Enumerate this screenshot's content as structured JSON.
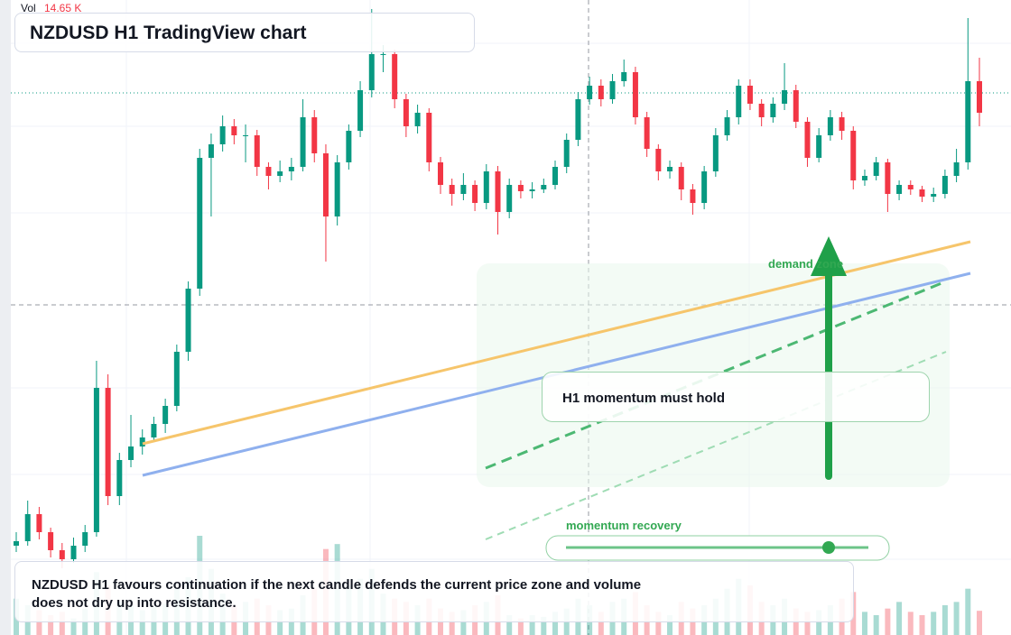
{
  "chart_data": {
    "type": "candlestick",
    "title": "NZDUSD H1 TradingView chart",
    "up_color": "#089981",
    "down_color": "#f23645",
    "candles": [
      [
        95,
        110,
        88,
        100
      ],
      [
        100,
        145,
        95,
        130
      ],
      [
        130,
        138,
        102,
        110
      ],
      [
        110,
        115,
        82,
        90
      ],
      [
        90,
        98,
        70,
        80
      ],
      [
        80,
        104,
        76,
        95
      ],
      [
        95,
        118,
        88,
        110
      ],
      [
        110,
        300,
        105,
        270
      ],
      [
        270,
        285,
        140,
        150
      ],
      [
        150,
        198,
        140,
        190
      ],
      [
        190,
        240,
        182,
        205
      ],
      [
        205,
        224,
        196,
        215
      ],
      [
        215,
        238,
        210,
        230
      ],
      [
        230,
        258,
        220,
        250
      ],
      [
        250,
        318,
        244,
        310
      ],
      [
        310,
        388,
        300,
        380
      ],
      [
        380,
        535,
        372,
        525
      ],
      [
        525,
        552,
        460,
        540
      ],
      [
        540,
        572,
        532,
        560
      ],
      [
        560,
        568,
        540,
        550
      ],
      [
        550,
        562,
        520,
        550
      ],
      [
        550,
        556,
        505,
        515
      ],
      [
        515,
        520,
        490,
        505
      ],
      [
        505,
        522,
        498,
        510
      ],
      [
        510,
        525,
        500,
        515
      ],
      [
        515,
        590,
        510,
        570
      ],
      [
        570,
        578,
        520,
        530
      ],
      [
        530,
        540,
        410,
        460
      ],
      [
        460,
        528,
        450,
        520
      ],
      [
        520,
        562,
        512,
        555
      ],
      [
        555,
        610,
        548,
        600
      ],
      [
        600,
        690,
        592,
        640
      ],
      [
        640,
        650,
        620,
        640
      ],
      [
        640,
        645,
        580,
        590
      ],
      [
        590,
        596,
        548,
        560
      ],
      [
        560,
        584,
        552,
        575
      ],
      [
        575,
        580,
        510,
        520
      ],
      [
        520,
        526,
        485,
        495
      ],
      [
        495,
        502,
        472,
        485
      ],
      [
        485,
        508,
        478,
        495
      ],
      [
        495,
        500,
        466,
        475
      ],
      [
        475,
        518,
        468,
        510
      ],
      [
        510,
        516,
        440,
        465
      ],
      [
        465,
        502,
        458,
        495
      ],
      [
        495,
        500,
        480,
        488
      ],
      [
        488,
        498,
        480,
        490
      ],
      [
        490,
        502,
        486,
        495
      ],
      [
        495,
        522,
        490,
        515
      ],
      [
        515,
        552,
        508,
        545
      ],
      [
        545,
        598,
        538,
        590
      ],
      [
        590,
        615,
        584,
        605
      ],
      [
        605,
        612,
        582,
        590
      ],
      [
        590,
        618,
        585,
        610
      ],
      [
        610,
        634,
        604,
        620
      ],
      [
        620,
        626,
        562,
        570
      ],
      [
        570,
        576,
        526,
        535
      ],
      [
        535,
        540,
        500,
        510
      ],
      [
        510,
        522,
        502,
        515
      ],
      [
        515,
        520,
        478,
        490
      ],
      [
        490,
        496,
        462,
        475
      ],
      [
        475,
        516,
        468,
        510
      ],
      [
        510,
        558,
        504,
        550
      ],
      [
        550,
        578,
        544,
        570
      ],
      [
        570,
        612,
        562,
        605
      ],
      [
        605,
        612,
        578,
        585
      ],
      [
        585,
        590,
        560,
        570
      ],
      [
        570,
        592,
        564,
        585
      ],
      [
        585,
        630,
        578,
        600
      ],
      [
        600,
        606,
        558,
        565
      ],
      [
        565,
        570,
        515,
        525
      ],
      [
        525,
        558,
        520,
        550
      ],
      [
        550,
        578,
        544,
        570
      ],
      [
        570,
        576,
        545,
        555
      ],
      [
        555,
        560,
        490,
        500
      ],
      [
        500,
        512,
        494,
        505
      ],
      [
        505,
        526,
        500,
        520
      ],
      [
        520,
        524,
        465,
        485
      ],
      [
        485,
        500,
        478,
        495
      ],
      [
        495,
        500,
        484,
        490
      ],
      [
        490,
        494,
        476,
        482
      ],
      [
        482,
        492,
        476,
        485
      ],
      [
        485,
        512,
        480,
        505
      ],
      [
        505,
        535,
        498,
        520
      ],
      [
        520,
        680,
        512,
        610
      ],
      [
        610,
        636,
        560,
        575
      ]
    ],
    "volume": {
      "label": "Vol",
      "last_label": "14.65 K",
      "values": [
        22,
        18,
        15,
        12,
        14,
        10,
        16,
        38,
        30,
        20,
        18,
        15,
        17,
        19,
        28,
        35,
        60,
        40,
        25,
        18,
        20,
        22,
        18,
        15,
        16,
        24,
        28,
        52,
        55,
        30,
        34,
        40,
        25,
        22,
        20,
        18,
        22,
        16,
        14,
        15,
        18,
        20,
        24,
        12,
        10,
        12,
        11,
        14,
        16,
        22,
        18,
        14,
        20,
        22,
        26,
        18,
        14,
        12,
        20,
        16,
        18,
        22,
        28,
        34,
        30,
        20,
        18,
        22,
        16,
        14,
        15,
        18,
        22,
        26,
        14,
        12,
        16,
        20,
        14,
        12,
        14,
        18,
        20,
        28,
        14.65
      ]
    },
    "annotations": {
      "demand_zone": "demand zone",
      "momentum_hold": "H1 momentum must hold",
      "momentum_recovery": "momentum recovery",
      "note": "NZDUSD H1 favours continuation if the next candle defends the current price zone and volume does not dry up into resistance."
    }
  }
}
